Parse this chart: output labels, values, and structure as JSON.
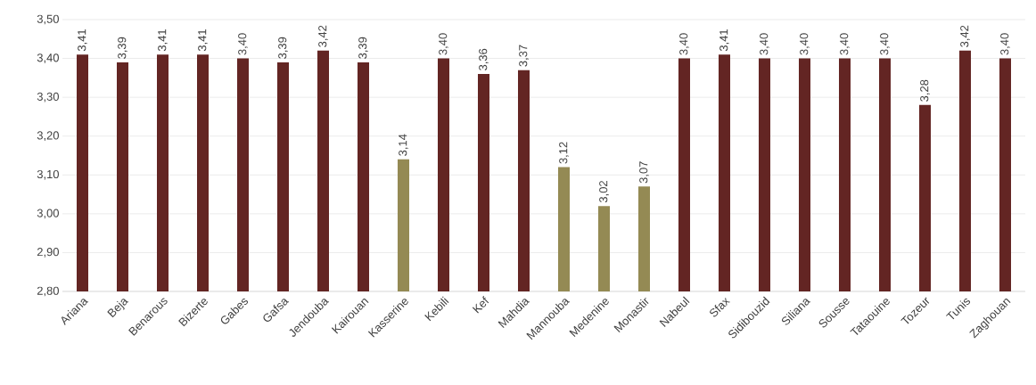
{
  "chart_data": {
    "type": "bar",
    "categories": [
      "Ariana",
      "Beja",
      "Benarous",
      "Bizerte",
      "Gabes",
      "Gafsa",
      "Jendouba",
      "Kairouan",
      "Kasserine",
      "Kebili",
      "Kef",
      "Mahdia",
      "Mannouba",
      "Medenine",
      "Monastir",
      "Nabeul",
      "Sfax",
      "Sidibouzid",
      "Siliana",
      "Sousse",
      "Tataouine",
      "Tozeur",
      "Tunis",
      "Zaghouan"
    ],
    "values": [
      3.41,
      3.39,
      3.41,
      3.41,
      3.4,
      3.39,
      3.42,
      3.39,
      3.14,
      3.4,
      3.36,
      3.37,
      3.12,
      3.02,
      3.07,
      3.4,
      3.41,
      3.4,
      3.4,
      3.4,
      3.4,
      3.28,
      3.42,
      3.4
    ],
    "value_labels": [
      "3,41",
      "3,39",
      "3,41",
      "3,41",
      "3,40",
      "3,39",
      "3,42",
      "3,39",
      "3,14",
      "3,40",
      "3,36",
      "3,37",
      "3,12",
      "3,02",
      "3,07",
      "3,40",
      "3,41",
      "3,40",
      "3,40",
      "3,40",
      "3,40",
      "3,28",
      "3,42",
      "3,40"
    ],
    "colors": [
      "#632523",
      "#632523",
      "#632523",
      "#632523",
      "#632523",
      "#632523",
      "#632523",
      "#632523",
      "#948a54",
      "#632523",
      "#632523",
      "#632523",
      "#948a54",
      "#948a54",
      "#948a54",
      "#632523",
      "#632523",
      "#632523",
      "#632523",
      "#632523",
      "#632523",
      "#632523",
      "#632523",
      "#632523"
    ],
    "ylim": [
      2.8,
      3.5
    ],
    "yticks": [
      {
        "value": 2.8,
        "label": "2,80"
      },
      {
        "value": 2.9,
        "label": "2,90"
      },
      {
        "value": 3.0,
        "label": "3,00"
      },
      {
        "value": 3.1,
        "label": "3,10"
      },
      {
        "value": 3.2,
        "label": "3,20"
      },
      {
        "value": 3.3,
        "label": "3,30"
      },
      {
        "value": 3.4,
        "label": "3,40"
      },
      {
        "value": 3.5,
        "label": "3,50"
      }
    ],
    "grid": "y"
  }
}
